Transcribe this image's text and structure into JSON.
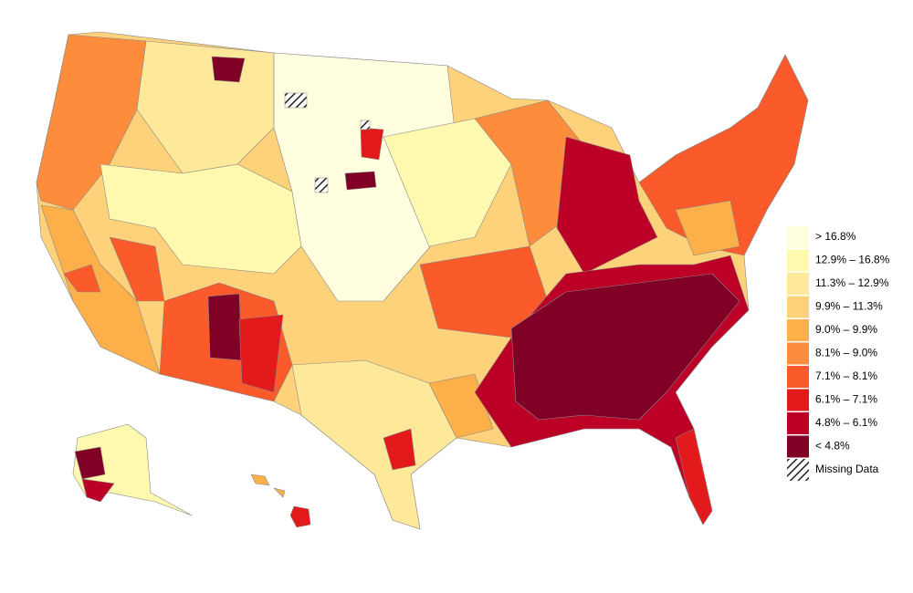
{
  "legend": {
    "items": [
      {
        "label": "> 16.8%",
        "color": "#ffffe0"
      },
      {
        "label": "12.9% – 16.8%",
        "color": "#fff9b0"
      },
      {
        "label": "11.3% – 12.9%",
        "color": "#fee89a"
      },
      {
        "label": "9.9% – 11.3%",
        "color": "#fed27a"
      },
      {
        "label": "9.0% – 9.9%",
        "color": "#fdb04a"
      },
      {
        "label": "8.1% – 9.0%",
        "color": "#fd8d3c"
      },
      {
        "label": "7.1% – 8.1%",
        "color": "#fb5a2a"
      },
      {
        "label": "6.1% – 7.1%",
        "color": "#e31a1c"
      },
      {
        "label": "4.8% – 6.1%",
        "color": "#bd0026"
      },
      {
        "label": "< 4.8%",
        "color": "#800026"
      }
    ],
    "missing": "Missing Data"
  }
}
